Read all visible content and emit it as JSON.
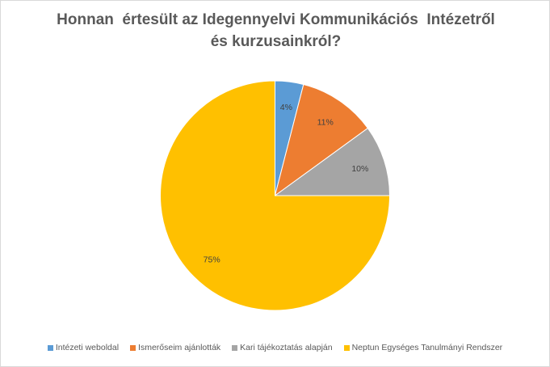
{
  "chart_data": {
    "type": "pie",
    "title_lines": [
      "Honnan  értesült az Idegennyelvi Kommunikációs  Intézetről",
      "és kurzusainkról?"
    ],
    "categories": [
      "Intézeti weboldal",
      "Ismerőseim ajánlották",
      "Kari tájékoztatás alapján",
      "Neptun Egységes Tanulmányi Rendszer"
    ],
    "values": [
      4,
      11,
      10,
      75
    ],
    "data_labels": [
      "4%",
      "11%",
      "10%",
      "75%"
    ],
    "colors": [
      "#5b9bd5",
      "#ed7d31",
      "#a5a5a5",
      "#ffc000"
    ],
    "legend_position": "bottom"
  }
}
